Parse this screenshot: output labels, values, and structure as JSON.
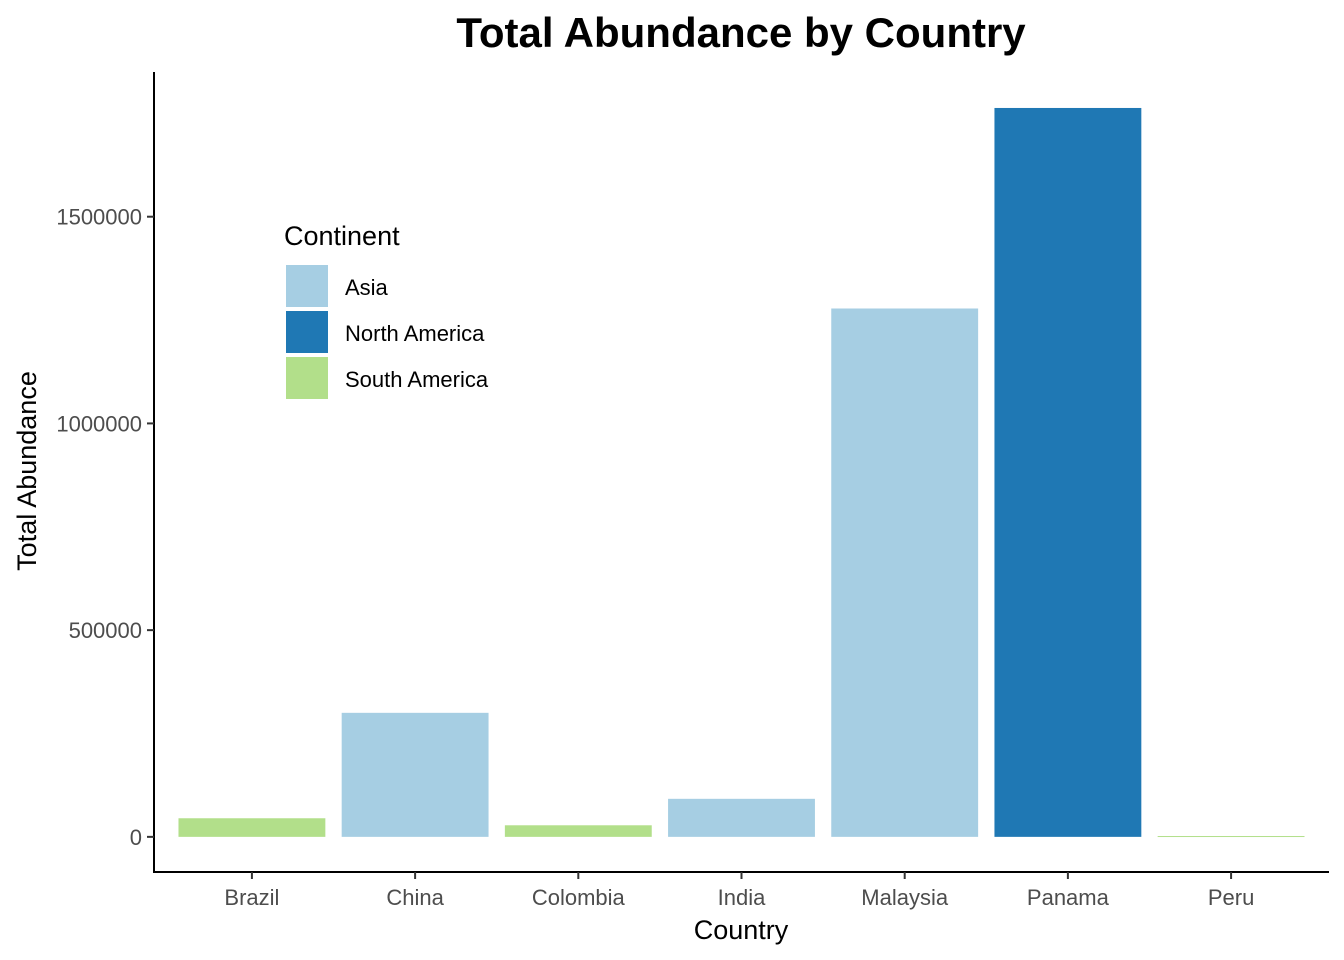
{
  "chart_data": {
    "type": "bar",
    "title": "Total Abundance by Country",
    "xlabel": "Country",
    "ylabel": "Total Abundance",
    "categories": [
      "Brazil",
      "China",
      "Colombia",
      "India",
      "Malaysia",
      "Panama",
      "Peru"
    ],
    "values": [
      45000,
      300000,
      28000,
      92000,
      1278000,
      1763000,
      2000
    ],
    "groups": [
      "South America",
      "Asia",
      "South America",
      "Asia",
      "Asia",
      "North America",
      "South America"
    ],
    "yticks": [
      0,
      500000,
      1000000,
      1500000
    ],
    "ytick_labels": [
      "0",
      "500000",
      "1000000",
      "1500000"
    ],
    "ylim": [
      -85000,
      1850000
    ],
    "grid": false,
    "legend": {
      "title": "Continent",
      "placement": "top-left inside",
      "entries": [
        {
          "label": "Asia",
          "color": "#a6cee3"
        },
        {
          "label": "North America",
          "color": "#1f78b4"
        },
        {
          "label": "South America",
          "color": "#b2df8a"
        }
      ]
    }
  }
}
